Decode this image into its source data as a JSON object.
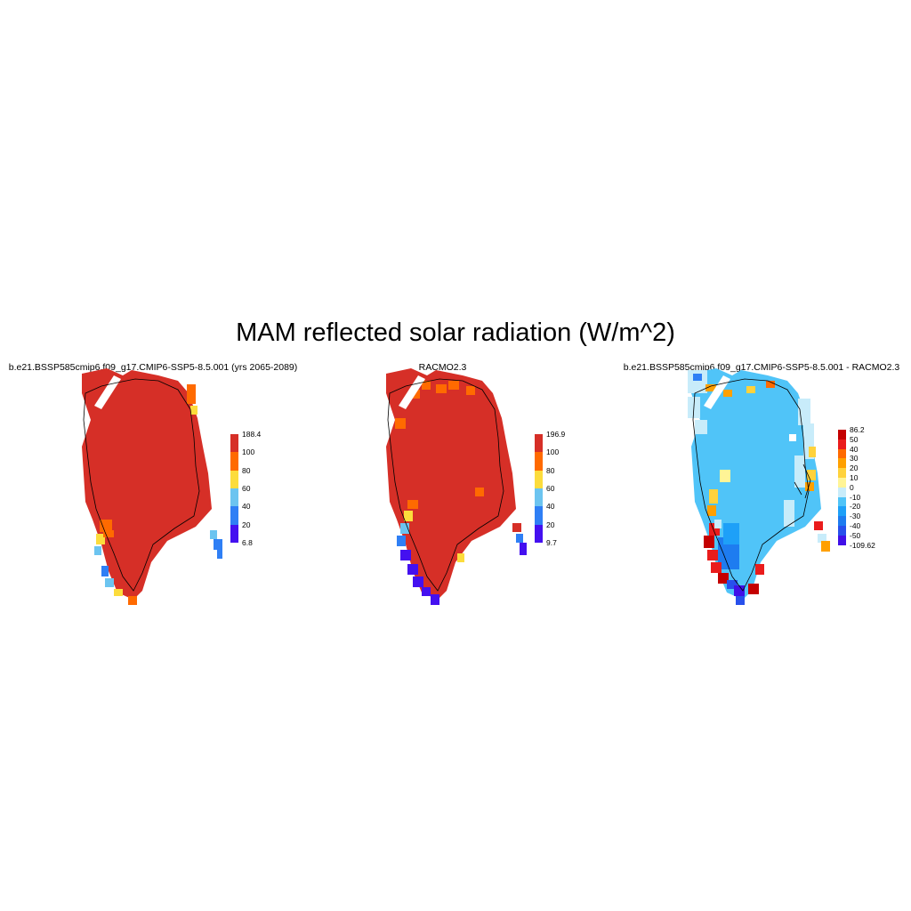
{
  "title": "MAM reflected solar radiation (W/m^2)",
  "panels": [
    {
      "title": "b.e21.BSSP585cmip6.f09_g17.CMIP6-SSP5-8.5.001 (yrs 2065-2089)",
      "colorbar": {
        "labels": [
          "188.4",
          "100",
          "80",
          "60",
          "40",
          "20",
          "6.8"
        ],
        "colors": [
          "#d62f27",
          "#ff6a00",
          "#fcdc3c",
          "#6cc4f0",
          "#2f7ff5",
          "#4410f0"
        ]
      }
    },
    {
      "title": "RACMO2.3",
      "colorbar": {
        "labels": [
          "196.9",
          "100",
          "80",
          "60",
          "40",
          "20",
          "9.7"
        ],
        "colors": [
          "#d62f27",
          "#ff6a00",
          "#fcdc3c",
          "#6cc4f0",
          "#2f7ff5",
          "#4410f0"
        ]
      }
    },
    {
      "title": "b.e21.BSSP585cmip6.f09_g17.CMIP6-SSP5-8.5.001 - RACMO2.3",
      "colorbar": {
        "labels": [
          "86.2",
          "50",
          "40",
          "30",
          "20",
          "10",
          "0",
          "-10",
          "-20",
          "-30",
          "-40",
          "-50",
          "-109.62"
        ],
        "colors": [
          "#c40000",
          "#ea1c1c",
          "#ff6a00",
          "#ffa000",
          "#ffd23c",
          "#fff496",
          "#c8ecfa",
          "#50c4f8",
          "#1ea0f8",
          "#1e7cf0",
          "#2850ec",
          "#4010e8"
        ]
      }
    }
  ]
}
